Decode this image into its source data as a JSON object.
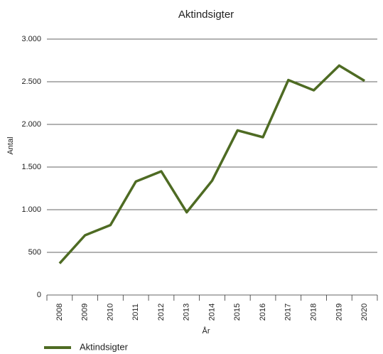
{
  "chart_data": {
    "type": "line",
    "title": "Aktindsigter",
    "x_label": "År",
    "y_label": "Antal",
    "categories": [
      "2008",
      "2009",
      "2010",
      "2011",
      "2012",
      "2013",
      "2014",
      "2015",
      "2016",
      "2017",
      "2018",
      "2019",
      "2020"
    ],
    "series": [
      {
        "name": "Aktindsigter",
        "color": "#4e6b23",
        "values": [
          370,
          700,
          820,
          1330,
          1450,
          970,
          1340,
          1930,
          1850,
          2520,
          2400,
          2690,
          2510
        ]
      }
    ],
    "ylim": [
      0,
      3000
    ],
    "yticks": [
      0,
      500,
      {
        "value": 1000,
        "label": "1.000"
      },
      {
        "value": 1500,
        "label": "1.500"
      },
      {
        "value": 2000,
        "label": "2.000"
      },
      {
        "value": 2500,
        "label": "2.500"
      },
      {
        "value": 3000,
        "label": "3.000"
      }
    ],
    "grid": true,
    "legend": "bottom-left"
  }
}
